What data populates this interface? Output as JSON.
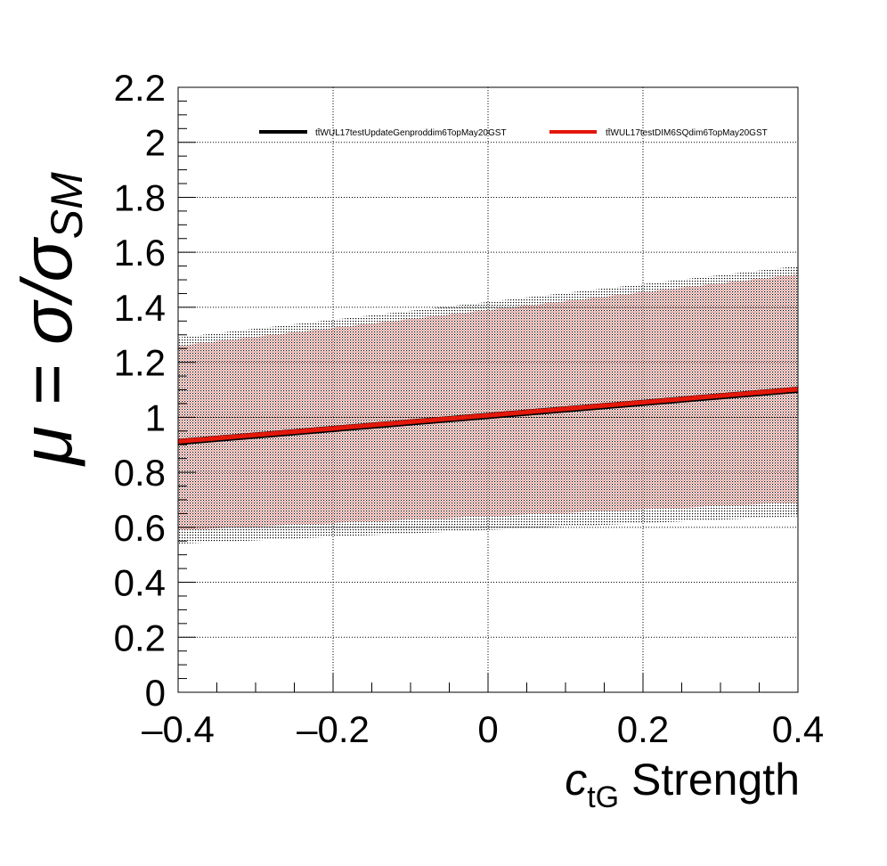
{
  "chart_data": {
    "type": "line",
    "title": "",
    "xlabel": {
      "symbol": "c",
      "subscript": "tG",
      "suffix": " Strength"
    },
    "ylabel": {
      "prefix": "μ = σ/σ",
      "subscript": "SM"
    },
    "xlim": [
      -0.4,
      0.4
    ],
    "ylim": [
      0,
      2.2
    ],
    "x_ticks": [
      -0.4,
      -0.2,
      0,
      0.2,
      0.4
    ],
    "x_tick_labels": [
      "–0.4",
      "–0.2",
      "0",
      "0.2",
      "0.4"
    ],
    "y_ticks": [
      0,
      0.2,
      0.4,
      0.6,
      0.8,
      1,
      1.2,
      1.4,
      1.6,
      1.8,
      2,
      2.2
    ],
    "y_tick_labels": [
      "0",
      "0.2",
      "0.4",
      "0.6",
      "0.8",
      "1",
      "1.2",
      "1.4",
      "1.6",
      "1.8",
      "2",
      "2.2"
    ],
    "grid": true,
    "legend_position": "top",
    "series": [
      {
        "name": "tt̄WUL17testUpdateGenproddim6TopMay20GST",
        "color": "#000000",
        "x": [
          -0.4,
          0.4
        ],
        "y": [
          0.91,
          1.1
        ],
        "band_lower": [
          0.54,
          0.64
        ],
        "band_upper": [
          1.29,
          1.55
        ]
      },
      {
        "name": "tt̄WUL17testDIM6SQdim6TopMay20GST",
        "color": "#e3170a",
        "x": [
          -0.4,
          0.4
        ],
        "y": [
          0.912,
          1.102
        ],
        "band_lower": [
          0.59,
          0.69
        ],
        "band_upper": [
          1.26,
          1.52
        ]
      }
    ]
  }
}
